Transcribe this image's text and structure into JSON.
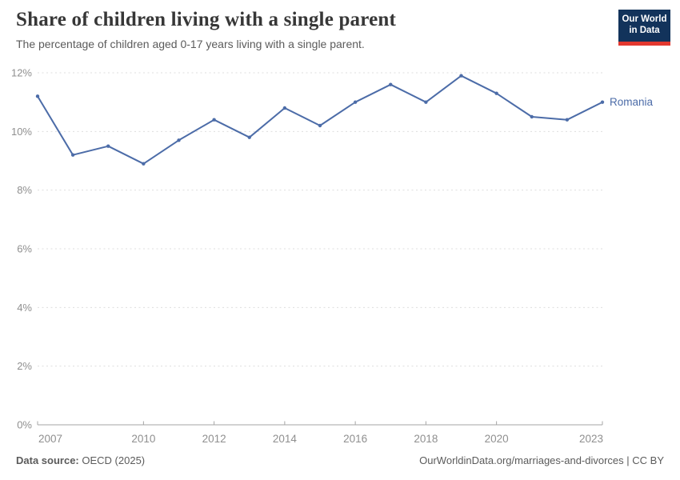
{
  "header": {
    "title": "Share of children living with a single parent",
    "subtitle": "The percentage of children aged 0-17 years living with a single parent.",
    "logo_line1": "Our World",
    "logo_line2": "in Data"
  },
  "chart_data": {
    "type": "line",
    "title": "Share of children living with a single parent",
    "xlabel": "",
    "ylabel": "",
    "x": [
      2007,
      2008,
      2009,
      2010,
      2011,
      2012,
      2013,
      2014,
      2015,
      2016,
      2017,
      2018,
      2019,
      2020,
      2021,
      2022,
      2023
    ],
    "series": [
      {
        "name": "Romania",
        "color": "#4C6CA8",
        "values": [
          11.2,
          9.2,
          9.5,
          8.9,
          9.7,
          10.4,
          9.8,
          10.8,
          10.2,
          11.0,
          11.6,
          11.0,
          11.9,
          11.3,
          10.5,
          10.4,
          11.0
        ]
      }
    ],
    "xlim": [
      2007,
      2023
    ],
    "ylim": [
      0,
      12
    ],
    "y_ticks": [
      {
        "value": 0,
        "label": "0%"
      },
      {
        "value": 2,
        "label": "2%"
      },
      {
        "value": 4,
        "label": "4%"
      },
      {
        "value": 6,
        "label": "6%"
      },
      {
        "value": 8,
        "label": "8%"
      },
      {
        "value": 10,
        "label": "10%"
      },
      {
        "value": 12,
        "label": "12%"
      }
    ],
    "x_ticks": [
      {
        "value": 2007,
        "label": "2007"
      },
      {
        "value": 2010,
        "label": "2010"
      },
      {
        "value": 2012,
        "label": "2012"
      },
      {
        "value": 2014,
        "label": "2014"
      },
      {
        "value": 2016,
        "label": "2016"
      },
      {
        "value": 2018,
        "label": "2018"
      },
      {
        "value": 2020,
        "label": "2020"
      },
      {
        "value": 2023,
        "label": "2023"
      }
    ],
    "grid": true,
    "legend_position": "right-of-last-point"
  },
  "footer": {
    "source_label": "Data source:",
    "source_value": "OECD (2025)",
    "citation": "OurWorldinData.org/marriages-and-divorces | CC BY"
  },
  "colors": {
    "series_line": "#4C6CA8",
    "grid_line": "#DEDEDE",
    "axis_line": "#A5A5A5",
    "tick_label": "#8F8F8F",
    "title_text": "#373737",
    "subtitle_text": "#5B5B5B",
    "footer_text": "#5B5B5B",
    "logo_background": "#12335B",
    "logo_accent": "#E2382F"
  }
}
